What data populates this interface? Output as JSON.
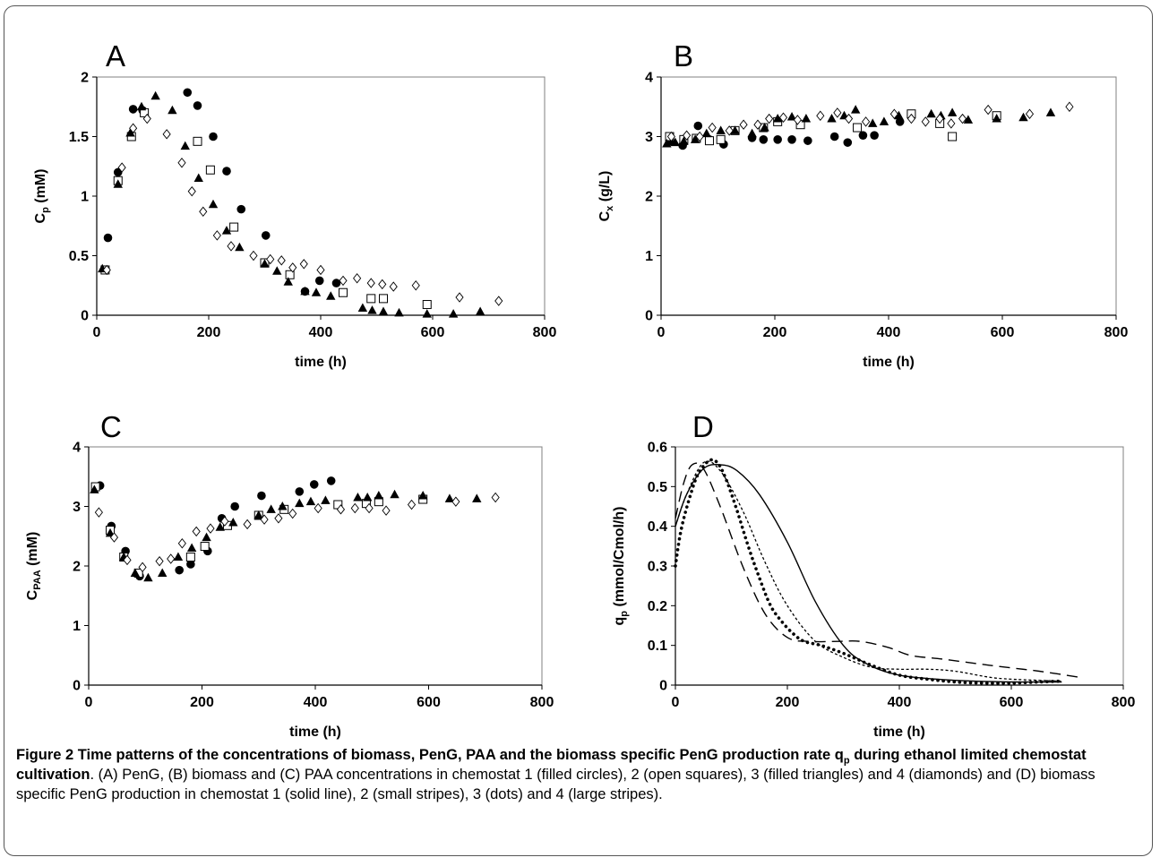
{
  "chart_data": [
    {
      "panel": "A",
      "type": "scatter",
      "xlabel": "time (h)",
      "ylabel_main": "C",
      "ylabel_sub": "p",
      "ylabel_unit": " (mM)",
      "xlim": [
        0,
        800
      ],
      "ylim": [
        0,
        2
      ],
      "xticks": [
        0,
        200,
        400,
        600,
        800
      ],
      "yticks": [
        0,
        0.5,
        1,
        1.5,
        2
      ],
      "series": [
        {
          "marker": "filled-circle",
          "x": [
            20,
            38,
            65,
            82,
            162,
            180,
            208,
            232,
            258,
            302,
            372,
            398,
            428
          ],
          "y": [
            0.65,
            1.2,
            1.73,
            1.72,
            1.87,
            1.76,
            1.5,
            1.21,
            0.89,
            0.67,
            0.2,
            0.29,
            0.27
          ]
        },
        {
          "marker": "open-square",
          "x": [
            15,
            38,
            62,
            85,
            180,
            203,
            245,
            300,
            345,
            440,
            490,
            512,
            590
          ],
          "y": [
            0.38,
            1.13,
            1.5,
            1.7,
            1.46,
            1.22,
            0.74,
            0.44,
            0.34,
            0.19,
            0.14,
            0.14,
            0.09
          ]
        },
        {
          "marker": "filled-triangle",
          "x": [
            10,
            38,
            60,
            80,
            105,
            135,
            158,
            182,
            208,
            232,
            255,
            300,
            322,
            342,
            372,
            392,
            418,
            475,
            492,
            512,
            540,
            590,
            637,
            685
          ],
          "y": [
            0.39,
            1.1,
            1.53,
            1.75,
            1.84,
            1.72,
            1.42,
            1.15,
            0.93,
            0.71,
            0.57,
            0.43,
            0.37,
            0.28,
            0.2,
            0.19,
            0.16,
            0.06,
            0.04,
            0.03,
            0.02,
            0.01,
            0.01,
            0.03
          ]
        },
        {
          "marker": "diamond",
          "x": [
            18,
            45,
            65,
            90,
            125,
            152,
            170,
            190,
            215,
            240,
            280,
            310,
            330,
            350,
            370,
            400,
            440,
            465,
            490,
            510,
            530,
            570,
            648,
            718
          ],
          "y": [
            0.38,
            1.24,
            1.57,
            1.65,
            1.52,
            1.28,
            1.04,
            0.87,
            0.67,
            0.58,
            0.5,
            0.47,
            0.46,
            0.4,
            0.43,
            0.38,
            0.29,
            0.31,
            0.27,
            0.26,
            0.24,
            0.25,
            0.15,
            0.12
          ]
        }
      ]
    },
    {
      "panel": "B",
      "type": "scatter",
      "xlabel": "time (h)",
      "ylabel_main": "C",
      "ylabel_sub": "x",
      "ylabel_unit": " (g/L)",
      "xlim": [
        0,
        800
      ],
      "ylim": [
        0,
        4
      ],
      "xticks": [
        0,
        200,
        400,
        600,
        800
      ],
      "yticks": [
        0,
        1,
        2,
        3,
        4
      ],
      "series": [
        {
          "marker": "filled-circle",
          "x": [
            15,
            38,
            65,
            85,
            110,
            160,
            180,
            205,
            230,
            258,
            305,
            328,
            355,
            375,
            420
          ],
          "y": [
            2.92,
            2.85,
            3.18,
            2.95,
            2.87,
            2.98,
            2.95,
            2.95,
            2.95,
            2.93,
            3.0,
            2.9,
            3.02,
            3.02,
            3.25
          ]
        },
        {
          "marker": "open-square",
          "x": [
            15,
            40,
            62,
            85,
            105,
            130,
            180,
            205,
            245,
            345,
            440,
            490,
            512,
            590
          ],
          "y": [
            3.0,
            2.95,
            2.97,
            2.93,
            2.95,
            3.1,
            3.15,
            3.25,
            3.2,
            3.15,
            3.38,
            3.22,
            3.0,
            3.35
          ]
        },
        {
          "marker": "filled-triangle",
          "x": [
            10,
            25,
            40,
            60,
            80,
            105,
            130,
            160,
            182,
            205,
            230,
            255,
            300,
            322,
            342,
            372,
            392,
            418,
            475,
            492,
            512,
            540,
            590,
            637,
            685
          ],
          "y": [
            2.88,
            2.9,
            2.92,
            2.95,
            3.05,
            3.1,
            3.1,
            3.05,
            3.15,
            3.3,
            3.33,
            3.3,
            3.3,
            3.35,
            3.45,
            3.22,
            3.25,
            3.35,
            3.38,
            3.35,
            3.4,
            3.28,
            3.3,
            3.32,
            3.4
          ]
        },
        {
          "marker": "diamond",
          "x": [
            18,
            45,
            68,
            90,
            120,
            145,
            170,
            190,
            215,
            240,
            280,
            310,
            330,
            360,
            410,
            440,
            465,
            490,
            510,
            530,
            575,
            648,
            718
          ],
          "y": [
            3.0,
            3.02,
            3.0,
            3.15,
            3.1,
            3.2,
            3.2,
            3.3,
            3.32,
            3.28,
            3.35,
            3.4,
            3.3,
            3.25,
            3.38,
            3.3,
            3.25,
            3.3,
            3.22,
            3.3,
            3.45,
            3.38,
            3.5
          ]
        }
      ]
    },
    {
      "panel": "C",
      "type": "scatter",
      "xlabel": "time (h)",
      "ylabel_main": "C",
      "ylabel_sub": "PAA",
      "ylabel_unit": " (mM)",
      "xlim": [
        0,
        800
      ],
      "ylim": [
        0,
        4
      ],
      "xticks": [
        0,
        200,
        400,
        600,
        800
      ],
      "yticks": [
        0,
        1,
        2,
        3,
        4
      ],
      "series": [
        {
          "marker": "filled-circle",
          "x": [
            20,
            40,
            65,
            90,
            160,
            180,
            210,
            235,
            258,
            305,
            372,
            398,
            428
          ],
          "y": [
            3.35,
            2.67,
            2.25,
            1.83,
            1.93,
            2.03,
            2.25,
            2.8,
            3.0,
            3.18,
            3.25,
            3.37,
            3.43
          ]
        },
        {
          "marker": "open-square",
          "x": [
            12,
            38,
            62,
            88,
            180,
            205,
            245,
            300,
            345,
            440,
            490,
            512,
            590
          ],
          "y": [
            3.33,
            2.6,
            2.15,
            1.88,
            2.15,
            2.33,
            2.68,
            2.85,
            2.95,
            3.03,
            3.05,
            3.08,
            3.12
          ]
        },
        {
          "marker": "filled-triangle",
          "x": [
            10,
            38,
            62,
            82,
            105,
            130,
            158,
            182,
            208,
            232,
            255,
            300,
            322,
            342,
            372,
            392,
            418,
            475,
            492,
            512,
            540,
            590,
            637,
            685
          ],
          "y": [
            3.28,
            2.55,
            2.15,
            1.88,
            1.8,
            1.88,
            2.15,
            2.3,
            2.48,
            2.65,
            2.73,
            2.85,
            2.95,
            3.0,
            3.05,
            3.08,
            3.1,
            3.15,
            3.15,
            3.18,
            3.2,
            3.18,
            3.13,
            3.13
          ]
        },
        {
          "marker": "diamond",
          "x": [
            18,
            45,
            68,
            95,
            125,
            145,
            165,
            190,
            215,
            240,
            280,
            310,
            335,
            360,
            405,
            445,
            470,
            495,
            525,
            570,
            648,
            718
          ],
          "y": [
            2.9,
            2.48,
            2.1,
            1.98,
            2.08,
            2.12,
            2.38,
            2.58,
            2.63,
            2.75,
            2.7,
            2.78,
            2.8,
            2.88,
            2.97,
            2.95,
            2.97,
            2.97,
            2.93,
            3.03,
            3.08,
            3.15
          ]
        }
      ]
    },
    {
      "panel": "D",
      "type": "line",
      "xlabel": "time (h)",
      "ylabel_main": "q",
      "ylabel_sub": "p",
      "ylabel_unit": " (mmol/Cmol/h)",
      "xlim": [
        0,
        800
      ],
      "ylim": [
        0,
        0.6
      ],
      "xticks": [
        0,
        200,
        400,
        600,
        800
      ],
      "yticks": [
        0,
        0.1,
        0.2,
        0.3,
        0.4,
        0.5,
        0.6
      ],
      "series": [
        {
          "style": "solid",
          "x": [
            0,
            20,
            50,
            80,
            110,
            150,
            200,
            250,
            300,
            340,
            400,
            500,
            600,
            690
          ],
          "y": [
            0.4,
            0.48,
            0.545,
            0.555,
            0.54,
            0.48,
            0.36,
            0.21,
            0.1,
            0.055,
            0.025,
            0.012,
            0.008,
            0.008
          ]
        },
        {
          "style": "small-stripes",
          "x": [
            0,
            20,
            50,
            80,
            120,
            160,
            200,
            250,
            300,
            350,
            400,
            450,
            500,
            560,
            600,
            690
          ],
          "y": [
            0.4,
            0.48,
            0.56,
            0.54,
            0.44,
            0.31,
            0.2,
            0.11,
            0.07,
            0.045,
            0.04,
            0.04,
            0.035,
            0.02,
            0.015,
            0.01
          ]
        },
        {
          "style": "dots",
          "x": [
            0,
            10,
            25,
            40,
            60,
            75,
            90,
            110,
            130,
            150,
            170,
            190,
            210,
            230,
            260,
            300,
            350,
            400,
            450,
            500,
            550,
            600,
            650,
            690
          ],
          "y": [
            0.3,
            0.39,
            0.47,
            0.53,
            0.565,
            0.56,
            0.52,
            0.44,
            0.35,
            0.27,
            0.2,
            0.16,
            0.13,
            0.11,
            0.1,
            0.08,
            0.05,
            0.025,
            0.015,
            0.008,
            0.005,
            0.005,
            0.008,
            0.01
          ]
        },
        {
          "style": "large-stripes",
          "x": [
            0,
            15,
            30,
            50,
            80,
            120,
            160,
            200,
            240,
            290,
            330,
            380,
            420,
            480,
            560,
            650,
            720
          ],
          "y": [
            0.42,
            0.51,
            0.555,
            0.545,
            0.45,
            0.3,
            0.18,
            0.12,
            0.11,
            0.11,
            0.11,
            0.095,
            0.075,
            0.065,
            0.05,
            0.035,
            0.02
          ]
        }
      ]
    }
  ],
  "panel_letters": [
    "A",
    "B",
    "C",
    "D"
  ],
  "caption": {
    "bold_lead": "Figure 2 Time patterns of the concentrations of biomass, PenG, PAA and the biomass specific PenG production rate q",
    "bold_sub": "p",
    "bold_tail": " during ethanol limited chemostat cultivation",
    "text": ". (A) PenG, (B) biomass and (C) PAA concentrations in chemostat 1 (filled circles), 2 (open squares), 3 (filled triangles) and 4 (diamonds) and (D) biomass specific PenG production in chemostat 1 (solid line), 2 (small stripes), 3 (dots) and 4 (large stripes)."
  }
}
